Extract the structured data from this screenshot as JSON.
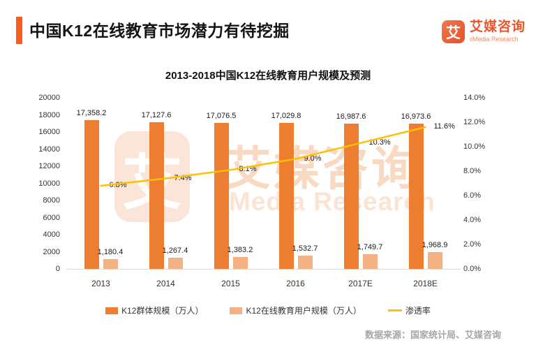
{
  "header": {
    "title": "中国K12在线教育市场潜力有待挖掘"
  },
  "logo": {
    "glyph": "艾",
    "name_cn": "艾媒咨询",
    "name_en": "iiMedia Research"
  },
  "watermark": {
    "glyph": "艾",
    "text_cn": "艾媒咨询",
    "text_en": "Media Research"
  },
  "source_note": "数据来源：国家统计局、艾媒咨询",
  "colors": {
    "accent": "#F95B22",
    "bar_primary": "#ED7D31",
    "bar_secondary": "#F4B183",
    "line": "#FFC000",
    "baseline": "#D9D9D9",
    "source_text": "#A6A6A6"
  },
  "chart_data": {
    "type": "bar+line",
    "title": "2013-2018中国K12在线教育用户规模及预测",
    "categories": [
      "2013",
      "2014",
      "2015",
      "2016",
      "2017E",
      "2018E"
    ],
    "series": [
      {
        "name": "K12群体规模（万人）",
        "type": "bar",
        "axis": "left",
        "color": "#ED7D31",
        "values": [
          17358.2,
          17127.6,
          17076.5,
          17029.8,
          16987.6,
          16973.6
        ],
        "labels": [
          "17,358.2",
          "17,127.6",
          "17,076.5",
          "17,029.8",
          "16,987.6",
          "16,973.6"
        ]
      },
      {
        "name": "K12在线教育用户规模（万人）",
        "type": "bar",
        "axis": "left",
        "color": "#F4B183",
        "values": [
          1180.4,
          1267.4,
          1383.2,
          1532.7,
          1749.7,
          1968.9
        ],
        "labels": [
          "1,180.4",
          "1,267.4",
          "1,383.2",
          "1,532.7",
          "1,749.7",
          "1,968.9"
        ]
      },
      {
        "name": "渗透率",
        "type": "line",
        "axis": "right",
        "color": "#FFC000",
        "values": [
          6.8,
          7.4,
          8.1,
          9.0,
          10.3,
          11.6
        ],
        "labels": [
          "6.8%",
          "7.4%",
          "8.1%",
          "9.0%",
          "10.3%",
          "11.6%"
        ]
      }
    ],
    "left_axis": {
      "min": 0,
      "max": 20000,
      "step": 2000,
      "ticks": [
        "0",
        "2000",
        "4000",
        "6000",
        "8000",
        "10000",
        "12000",
        "14000",
        "16000",
        "18000",
        "20000"
      ]
    },
    "right_axis": {
      "min": 0,
      "max": 14,
      "step": 2,
      "ticks": [
        "0.0%",
        "2.0%",
        "4.0%",
        "6.0%",
        "8.0%",
        "10.0%",
        "12.0%",
        "14.0%"
      ]
    },
    "grid": false,
    "legend_position": "bottom"
  }
}
